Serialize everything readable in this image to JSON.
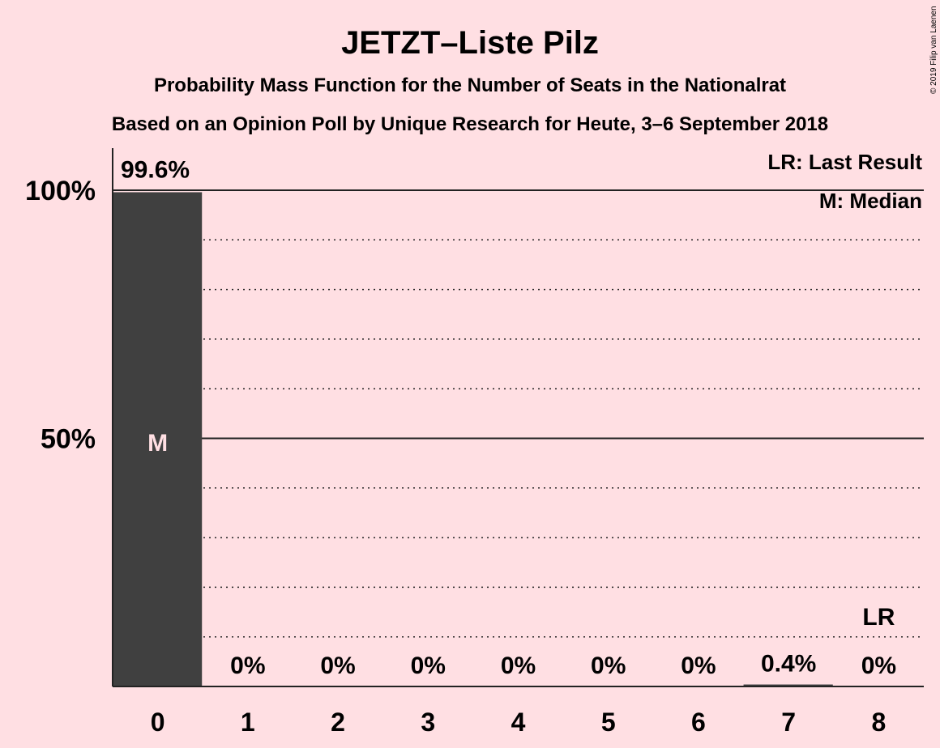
{
  "chart_data": {
    "type": "bar",
    "title": "JETZT–Liste Pilz",
    "subtitle": "Probability Mass Function for the Number of Seats in the Nationalrat",
    "subtitle2": "Based on an Opinion Poll by Unique Research for Heute, 3–6 September 2018",
    "categories": [
      "0",
      "1",
      "2",
      "3",
      "4",
      "5",
      "6",
      "7",
      "8"
    ],
    "values": [
      99.6,
      0,
      0,
      0,
      0,
      0,
      0,
      0.4,
      0
    ],
    "value_labels": [
      "99.6%",
      "0%",
      "0%",
      "0%",
      "0%",
      "0%",
      "0%",
      "0.4%",
      "0%"
    ],
    "ylim": [
      0,
      100
    ],
    "yticks": [
      {
        "value": 50,
        "label": "50%"
      },
      {
        "value": 100,
        "label": "100%"
      }
    ],
    "grid": true,
    "median_index": 0,
    "median_mark": "M",
    "last_result_index": 8,
    "last_result_mark": "LR",
    "legend": [
      "LR: Last Result",
      "M: Median"
    ],
    "legend_position": "top-right",
    "bar_color": "#404040",
    "median_text_color": "#FFDFE3"
  },
  "copyright": "© 2019 Filip van Laenen"
}
